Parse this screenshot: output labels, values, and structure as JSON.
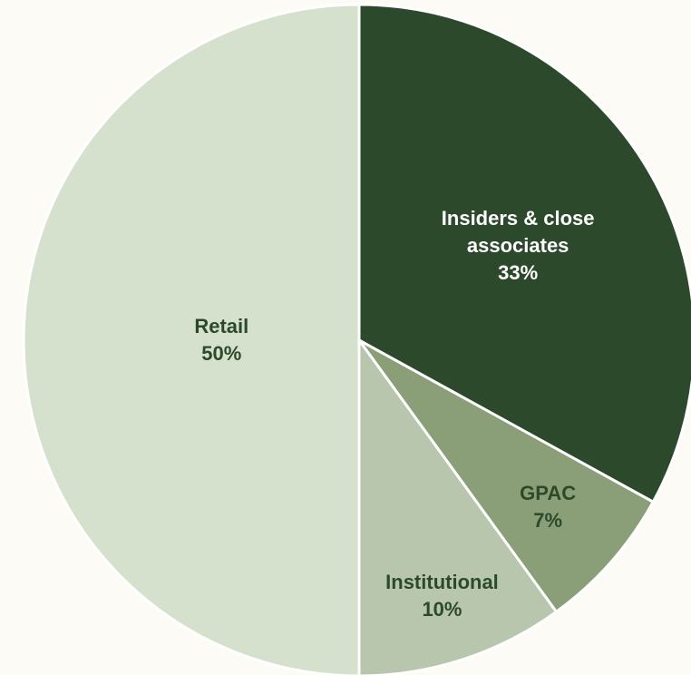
{
  "chart_data": {
    "type": "pie",
    "categories": [
      "Insiders & close associates",
      "GPAC",
      "Institutional",
      "Retail"
    ],
    "values": [
      33,
      7,
      10,
      50
    ],
    "value_labels": [
      "33%",
      "7%",
      "10%",
      "50%"
    ],
    "colors": [
      "#2c4a2b",
      "#8a9f78",
      "#b9c6ae",
      "#d6e1cd"
    ],
    "label_colors": [
      "#ffffff",
      "#2c4a2b",
      "#2c4a2b",
      "#2c4a2b"
    ]
  }
}
